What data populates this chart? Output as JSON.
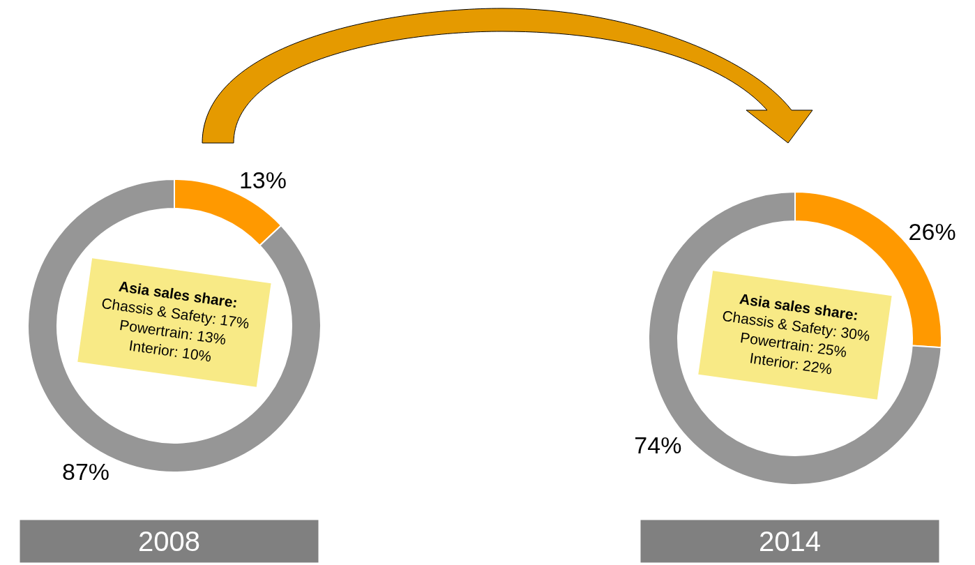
{
  "chart_data": [
    {
      "type": "donut",
      "title": "2008",
      "categories": [
        null,
        null
      ],
      "values": [
        13,
        87
      ],
      "colors": [
        "#ff9900",
        "#969696"
      ],
      "value_labels": [
        "13%",
        "87%"
      ],
      "annotations": [
        "Asia sales share:",
        "Chassis & Safety: 17%",
        "Powertrain: 13%",
        "Interior: 10%"
      ]
    },
    {
      "type": "donut",
      "title": "2014",
      "categories": [
        null,
        null
      ],
      "values": [
        26,
        74
      ],
      "colors": [
        "#ff9900",
        "#969696"
      ],
      "value_labels": [
        "26%",
        "74%"
      ],
      "annotations": [
        "Asia sales share:",
        "Chassis & Safety: 30%",
        "Powertrain: 25%",
        "Interior: 22%"
      ]
    }
  ]
}
